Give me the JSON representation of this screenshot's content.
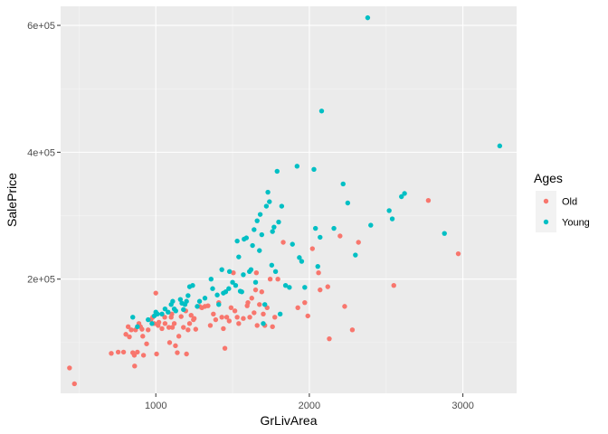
{
  "chart_data": {
    "type": "scatter",
    "xlabel": "GrLivArea",
    "ylabel": "SalePrice",
    "xlim": [
      380,
      3350
    ],
    "ylim": [
      20000,
      630000
    ],
    "x_ticks": [
      1000,
      2000,
      3000
    ],
    "x_tick_labels": [
      "1000",
      "2000",
      "3000"
    ],
    "y_ticks": [
      200000,
      400000,
      600000
    ],
    "y_tick_labels": [
      "2e+05",
      "4e+05",
      "6e+05"
    ],
    "grid": true,
    "legend": {
      "title": "Ages",
      "position": "right"
    },
    "series": [
      {
        "name": "Old",
        "color": "#F8766D",
        "points": [
          [
            438,
            60000
          ],
          [
            470,
            35000
          ],
          [
            710,
            83000
          ],
          [
            755,
            85000
          ],
          [
            790,
            85000
          ],
          [
            805,
            113000
          ],
          [
            820,
            125000
          ],
          [
            828,
            109000
          ],
          [
            840,
            120000
          ],
          [
            850,
            84000
          ],
          [
            860,
            80000
          ],
          [
            862,
            63000
          ],
          [
            868,
            120000
          ],
          [
            880,
            85000
          ],
          [
            890,
            130000
          ],
          [
            900,
            125000
          ],
          [
            910,
            121000
          ],
          [
            915,
            110000
          ],
          [
            920,
            80000
          ],
          [
            940,
            98000
          ],
          [
            950,
            120000
          ],
          [
            968,
            136000
          ],
          [
            980,
            140000
          ],
          [
            990,
            130000
          ],
          [
            1000,
            178000
          ],
          [
            1005,
            82000
          ],
          [
            1015,
            127000
          ],
          [
            1020,
            132000
          ],
          [
            1040,
            122000
          ],
          [
            1058,
            140000
          ],
          [
            1060,
            130000
          ],
          [
            1085,
            124000
          ],
          [
            1090,
            100000
          ],
          [
            1100,
            140000
          ],
          [
            1104,
            145000
          ],
          [
            1108,
            124000
          ],
          [
            1120,
            130000
          ],
          [
            1128,
            95000
          ],
          [
            1140,
            84000
          ],
          [
            1150,
            110000
          ],
          [
            1165,
            141000
          ],
          [
            1180,
            124000
          ],
          [
            1195,
            150000
          ],
          [
            1200,
            82000
          ],
          [
            1210,
            120000
          ],
          [
            1220,
            130000
          ],
          [
            1230,
            143000
          ],
          [
            1245,
            136000
          ],
          [
            1250,
            138000
          ],
          [
            1260,
            121000
          ],
          [
            1285,
            157000
          ],
          [
            1300,
            155000
          ],
          [
            1320,
            157000
          ],
          [
            1340,
            158000
          ],
          [
            1355,
            127000
          ],
          [
            1375,
            145000
          ],
          [
            1390,
            136000
          ],
          [
            1410,
            163000
          ],
          [
            1430,
            140000
          ],
          [
            1440,
            122000
          ],
          [
            1450,
            91000
          ],
          [
            1462,
            140000
          ],
          [
            1478,
            134000
          ],
          [
            1490,
            155000
          ],
          [
            1505,
            210000
          ],
          [
            1515,
            150000
          ],
          [
            1530,
            140000
          ],
          [
            1540,
            130000
          ],
          [
            1570,
            138000
          ],
          [
            1595,
            158000
          ],
          [
            1600,
            163000
          ],
          [
            1612,
            140000
          ],
          [
            1625,
            170000
          ],
          [
            1640,
            147000
          ],
          [
            1650,
            183000
          ],
          [
            1655,
            210000
          ],
          [
            1660,
            127000
          ],
          [
            1675,
            160000
          ],
          [
            1690,
            180000
          ],
          [
            1700,
            145000
          ],
          [
            1710,
            127000
          ],
          [
            1725,
            155000
          ],
          [
            1745,
            200000
          ],
          [
            1760,
            125000
          ],
          [
            1775,
            140000
          ],
          [
            1795,
            200000
          ],
          [
            1830,
            258000
          ],
          [
            1925,
            155000
          ],
          [
            1970,
            163000
          ],
          [
            1990,
            142000
          ],
          [
            2020,
            248000
          ],
          [
            2060,
            210000
          ],
          [
            2070,
            183000
          ],
          [
            2120,
            188000
          ],
          [
            2130,
            106000
          ],
          [
            2200,
            268000
          ],
          [
            2230,
            157000
          ],
          [
            2280,
            120000
          ],
          [
            2320,
            258000
          ],
          [
            2550,
            190000
          ],
          [
            2775,
            324000
          ],
          [
            2970,
            240000
          ]
        ]
      },
      {
        "name": "Young",
        "color": "#00BFC4",
        "points": [
          [
            850,
            140000
          ],
          [
            880,
            125000
          ],
          [
            950,
            136000
          ],
          [
            975,
            130000
          ],
          [
            990,
            142000
          ],
          [
            1000,
            148000
          ],
          [
            1010,
            145000
          ],
          [
            1040,
            145000
          ],
          [
            1060,
            153000
          ],
          [
            1080,
            148000
          ],
          [
            1100,
            160000
          ],
          [
            1110,
            165000
          ],
          [
            1120,
            153000
          ],
          [
            1130,
            150000
          ],
          [
            1160,
            168000
          ],
          [
            1170,
            162000
          ],
          [
            1180,
            152000
          ],
          [
            1190,
            160000
          ],
          [
            1200,
            165000
          ],
          [
            1210,
            174000
          ],
          [
            1220,
            188000
          ],
          [
            1240,
            190000
          ],
          [
            1270,
            157000
          ],
          [
            1285,
            165000
          ],
          [
            1320,
            170000
          ],
          [
            1360,
            200000
          ],
          [
            1370,
            185000
          ],
          [
            1400,
            175000
          ],
          [
            1410,
            160000
          ],
          [
            1430,
            215000
          ],
          [
            1440,
            178000
          ],
          [
            1455,
            180000
          ],
          [
            1475,
            185000
          ],
          [
            1480,
            212000
          ],
          [
            1500,
            195000
          ],
          [
            1520,
            190000
          ],
          [
            1530,
            260000
          ],
          [
            1540,
            235000
          ],
          [
            1550,
            181000
          ],
          [
            1560,
            180000
          ],
          [
            1570,
            207000
          ],
          [
            1575,
            263000
          ],
          [
            1590,
            265000
          ],
          [
            1610,
            212000
          ],
          [
            1620,
            215000
          ],
          [
            1630,
            253000
          ],
          [
            1640,
            278000
          ],
          [
            1650,
            195000
          ],
          [
            1660,
            292000
          ],
          [
            1675,
            245000
          ],
          [
            1680,
            302000
          ],
          [
            1690,
            270000
          ],
          [
            1700,
            130000
          ],
          [
            1710,
            160000
          ],
          [
            1720,
            315000
          ],
          [
            1730,
            337000
          ],
          [
            1740,
            322000
          ],
          [
            1755,
            222000
          ],
          [
            1760,
            275000
          ],
          [
            1770,
            282000
          ],
          [
            1780,
            212000
          ],
          [
            1790,
            370000
          ],
          [
            1800,
            290000
          ],
          [
            1810,
            145000
          ],
          [
            1820,
            315000
          ],
          [
            1845,
            190000
          ],
          [
            1870,
            187000
          ],
          [
            1890,
            255000
          ],
          [
            1920,
            378000
          ],
          [
            1935,
            234000
          ],
          [
            1950,
            228000
          ],
          [
            1970,
            187000
          ],
          [
            2030,
            373000
          ],
          [
            2040,
            280000
          ],
          [
            2055,
            220000
          ],
          [
            2070,
            266000
          ],
          [
            2080,
            465000
          ],
          [
            2160,
            280000
          ],
          [
            2220,
            350000
          ],
          [
            2250,
            320000
          ],
          [
            2300,
            238000
          ],
          [
            2380,
            612000
          ],
          [
            2400,
            285000
          ],
          [
            2520,
            308000
          ],
          [
            2540,
            295000
          ],
          [
            2600,
            330000
          ],
          [
            2620,
            335000
          ],
          [
            2880,
            272000
          ],
          [
            3240,
            410000
          ]
        ]
      }
    ]
  }
}
